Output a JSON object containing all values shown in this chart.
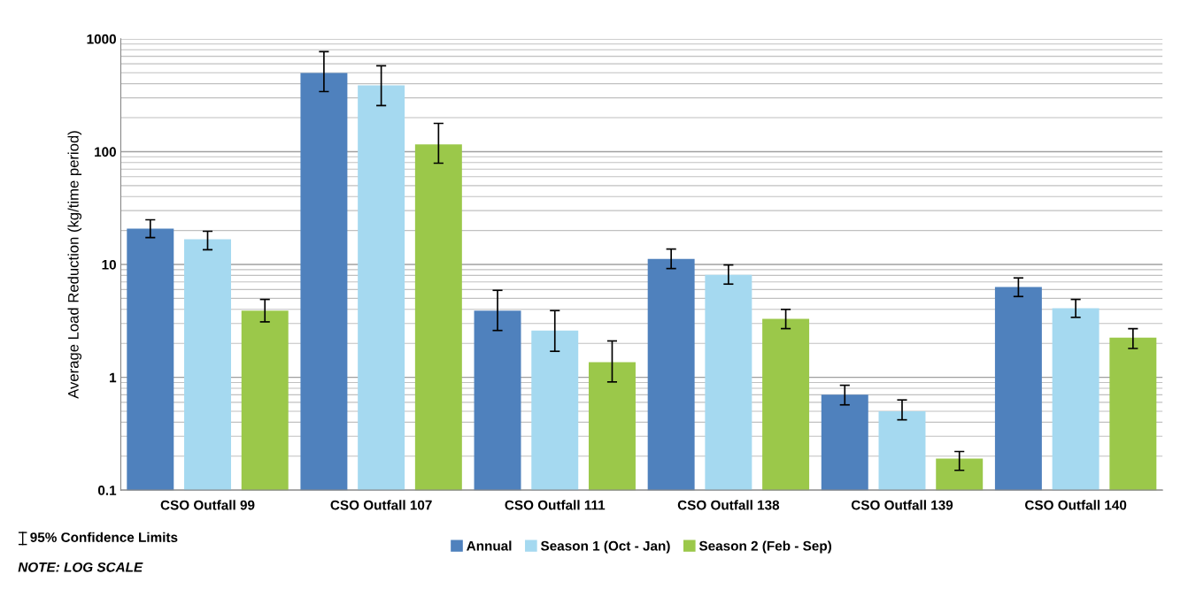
{
  "chart_data": {
    "type": "bar",
    "ylabel": "Average Load Reduction (kg/time period)",
    "categories": [
      "CSO Outfall 99",
      "CSO Outfall 107",
      "CSO Outfall 111",
      "CSO Outfall 138",
      "CSO Outfall 139",
      "CSO Outfall 140"
    ],
    "series": [
      {
        "name": "Annual",
        "color": "#4f81bd",
        "values": [
          20.8,
          499,
          3.9,
          11.2,
          0.7,
          6.3
        ],
        "errors": [
          [
            17.3,
            24.9
          ],
          [
            341,
            770
          ],
          [
            2.6,
            5.9
          ],
          [
            9.2,
            13.7
          ],
          [
            0.57,
            0.85
          ],
          [
            5.2,
            7.6
          ]
        ]
      },
      {
        "name": "Season 1 (Oct - Jan)",
        "color": "#a5d9f0",
        "values": [
          16.7,
          387,
          2.6,
          8.1,
          0.5,
          4.1
        ],
        "errors": [
          [
            13.5,
            19.7
          ],
          [
            256,
            576
          ],
          [
            1.7,
            3.9
          ],
          [
            6.7,
            9.9
          ],
          [
            0.42,
            0.63
          ],
          [
            3.4,
            4.9
          ]
        ]
      },
      {
        "name": "Season 2 (Feb - Sep)",
        "color": "#9bc84a",
        "values": [
          3.9,
          116,
          1.36,
          3.3,
          0.19,
          2.25
        ],
        "errors": [
          [
            3.1,
            4.9
          ],
          [
            79,
            178
          ],
          [
            0.91,
            2.1
          ],
          [
            2.7,
            4.0
          ],
          [
            0.15,
            0.22
          ],
          [
            1.8,
            2.7
          ]
        ]
      }
    ],
    "log": "y",
    "ylim": [
      0.1,
      1000
    ],
    "yticks": [
      0.1,
      1,
      10,
      100,
      1000
    ],
    "grid": "y",
    "legend": "bottom",
    "annotations": [
      "95% Confidence Limits",
      "NOTE: LOG SCALE"
    ]
  }
}
